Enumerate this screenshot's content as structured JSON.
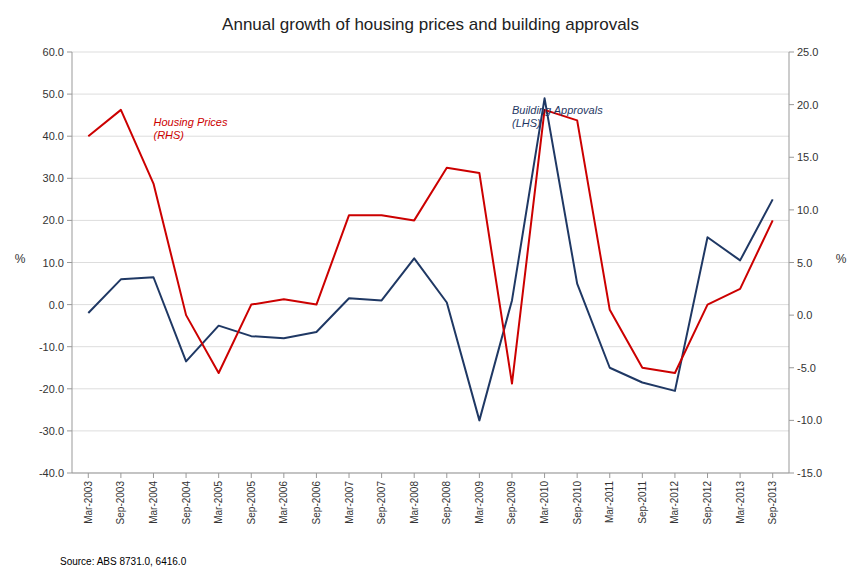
{
  "chart_data": {
    "type": "line",
    "title": "Annual growth of housing prices and building approvals",
    "source": "Source: ABS 8731.0, 6416.0",
    "ylabel": "%",
    "y2label": "%",
    "categories": [
      "Mar-2003",
      "Sep-2003",
      "Mar-2004",
      "Sep-2004",
      "Mar-2005",
      "Sep-2005",
      "Mar-2006",
      "Sep-2006",
      "Mar-2007",
      "Sep-2007",
      "Mar-2008",
      "Sep-2008",
      "Mar-2009",
      "Sep-2009",
      "Mar-2010",
      "Sep-2010",
      "Mar-2011",
      "Sep-2011",
      "Mar-2012",
      "Sep-2012",
      "Mar-2013",
      "Sep-2013"
    ],
    "series": [
      {
        "color": "#1F3864",
        "values": [
          -2.0,
          6.0,
          6.5,
          -13.5,
          -5.0,
          -7.5,
          -8.0,
          -6.5,
          1.5,
          1.0,
          11.0,
          0.5,
          -27.5,
          1.0,
          49.0,
          5.0,
          -15.0,
          -18.5,
          -20.5,
          16.0,
          10.5,
          25.0
        ]
      },
      {
        "color": "#CC0000",
        "axis": "y2",
        "values": [
          17.0,
          19.5,
          12.5,
          0.0,
          -5.5,
          1.0,
          1.5,
          1.0,
          9.5,
          9.5,
          9.0,
          14.0,
          13.5,
          -6.5,
          19.5,
          18.5,
          0.5,
          -5.0,
          -5.5,
          1.0,
          2.5,
          9.0
        ]
      }
    ],
    "ylim": [
      -40.0,
      60.0
    ],
    "yticks": [
      {
        "value": -40.0,
        "label": "-40.0"
      },
      {
        "value": -30.0,
        "label": "-30.0"
      },
      {
        "value": -20.0,
        "label": "-20.0"
      },
      {
        "value": -10.0,
        "label": "-10.0"
      },
      {
        "value": 0.0,
        "label": "0.0"
      },
      {
        "value": 10.0,
        "label": "10.0"
      },
      {
        "value": 20.0,
        "label": "20.0"
      },
      {
        "value": 30.0,
        "label": "30.0"
      },
      {
        "value": 40.0,
        "label": "40.0"
      },
      {
        "value": 50.0,
        "label": "50.0"
      },
      {
        "value": 60.0,
        "label": "60.0"
      }
    ],
    "y2lim": [
      -15.0,
      25.0
    ],
    "y2ticks": [
      {
        "value": -15.0,
        "label": "-15.0"
      },
      {
        "value": -10.0,
        "label": "-10.0"
      },
      {
        "value": -5.0,
        "label": "-5.0"
      },
      {
        "value": 0.0,
        "label": "0.0"
      },
      {
        "value": 5.0,
        "label": "5.0"
      },
      {
        "value": 10.0,
        "label": "10.0"
      },
      {
        "value": 15.0,
        "label": "15.0"
      },
      {
        "value": 20.0,
        "label": "20.0"
      },
      {
        "value": 25.0,
        "label": "25.0"
      }
    ],
    "grid": true,
    "annotations": [
      {
        "text": "Building Approvals\n(LHS)",
        "x": "Sep-2009",
        "y": 48
      },
      {
        "text": "Housing Prices\n(RHS)",
        "x": "Mar-2004",
        "y": 19,
        "axis": "y2"
      }
    ]
  }
}
